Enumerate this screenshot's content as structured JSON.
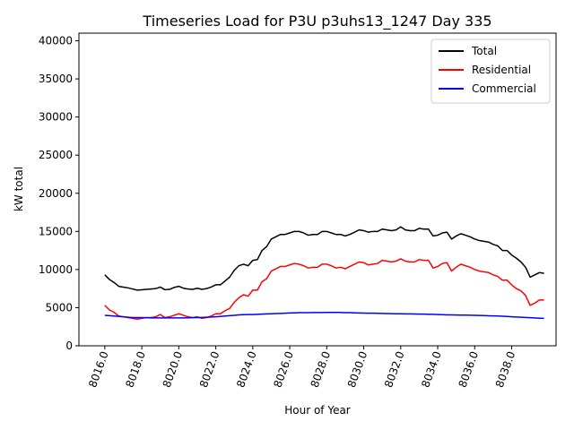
{
  "chart_data": {
    "type": "line",
    "title": "Timeseries Load for P3U p3uhs13_1247  Day 335",
    "xlabel": "Hour of Year",
    "ylabel": "kW total",
    "xlim": [
      8014.6,
      8040.4
    ],
    "ylim": [
      0,
      41000
    ],
    "xticks": [
      8016,
      8018,
      8020,
      8022,
      8024,
      8026,
      8028,
      8030,
      8032,
      8034,
      8036,
      8038
    ],
    "xtick_labels": [
      "8016.0",
      "8018.0",
      "8020.0",
      "8022.0",
      "8024.0",
      "8026.0",
      "8028.0",
      "8030.0",
      "8032.0",
      "8034.0",
      "8036.0",
      "8038.0"
    ],
    "yticks": [
      0,
      5000,
      10000,
      15000,
      20000,
      25000,
      30000,
      35000,
      40000
    ],
    "ytick_labels": [
      "0",
      "5000",
      "10000",
      "15000",
      "20000",
      "25000",
      "30000",
      "35000",
      "40000"
    ],
    "legend_position": "top-right",
    "x": [
      8016.0,
      8016.25,
      8016.5,
      8016.75,
      8017.0,
      8017.25,
      8017.5,
      8017.75,
      8018.0,
      8018.25,
      8018.5,
      8018.75,
      8019.0,
      8019.25,
      8019.5,
      8019.75,
      8020.0,
      8020.25,
      8020.5,
      8020.75,
      8021.0,
      8021.25,
      8021.5,
      8021.75,
      8022.0,
      8022.25,
      8022.5,
      8022.75,
      8023.0,
      8023.25,
      8023.5,
      8023.75,
      8024.0,
      8024.25,
      8024.5,
      8024.75,
      8025.0,
      8025.25,
      8025.5,
      8025.75,
      8026.0,
      8026.25,
      8026.5,
      8026.75,
      8027.0,
      8027.25,
      8027.5,
      8027.75,
      8028.0,
      8028.25,
      8028.5,
      8028.75,
      8029.0,
      8029.25,
      8029.5,
      8029.75,
      8030.0,
      8030.25,
      8030.5,
      8030.75,
      8031.0,
      8031.25,
      8031.5,
      8031.75,
      8032.0,
      8032.25,
      8032.5,
      8032.75,
      8033.0,
      8033.25,
      8033.5,
      8033.75,
      8034.0,
      8034.25,
      8034.5,
      8034.75,
      8035.0,
      8035.25,
      8035.5,
      8035.75,
      8036.0,
      8036.25,
      8036.5,
      8036.75,
      8037.0,
      8037.25,
      8037.5,
      8037.75,
      8038.0,
      8038.25,
      8038.5,
      8038.75,
      8039.0,
      8039.25,
      8039.5,
      8039.75
    ],
    "series": [
      {
        "name": "Total",
        "color": "#000000",
        "values": [
          9300,
          8700,
          8300,
          7800,
          7700,
          7600,
          7450,
          7300,
          7350,
          7400,
          7450,
          7500,
          7700,
          7350,
          7400,
          7650,
          7800,
          7550,
          7450,
          7400,
          7550,
          7400,
          7500,
          7700,
          8000,
          8000,
          8500,
          9000,
          9900,
          10500,
          10700,
          10500,
          11200,
          11300,
          12500,
          13000,
          14000,
          14300,
          14600,
          14600,
          14800,
          15000,
          15000,
          14800,
          14500,
          14600,
          14600,
          15000,
          15000,
          14800,
          14600,
          14600,
          14400,
          14600,
          14900,
          15200,
          15100,
          14900,
          15000,
          15000,
          15300,
          15200,
          15100,
          15200,
          15600,
          15200,
          15100,
          15100,
          15400,
          15300,
          15300,
          14400,
          14500,
          14800,
          14900,
          14000,
          14400,
          14700,
          14500,
          14300,
          14000,
          13800,
          13700,
          13600,
          13300,
          13100,
          12500,
          12500,
          11900,
          11500,
          11000,
          10300,
          9000,
          9300,
          9600,
          9500
        ]
      },
      {
        "name": "Residential",
        "color": "#ff0000",
        "values": [
          5300,
          4700,
          4400,
          3900,
          3800,
          3700,
          3600,
          3500,
          3600,
          3700,
          3700,
          3800,
          4100,
          3700,
          3800,
          4000,
          4200,
          4000,
          3800,
          3700,
          3800,
          3600,
          3700,
          3900,
          4200,
          4200,
          4600,
          4900,
          5700,
          6300,
          6700,
          6500,
          7300,
          7300,
          8400,
          8800,
          9800,
          10100,
          10400,
          10400,
          10600,
          10800,
          10700,
          10500,
          10200,
          10300,
          10300,
          10700,
          10700,
          10500,
          10200,
          10300,
          10100,
          10400,
          10700,
          11000,
          10900,
          10600,
          10700,
          10800,
          11200,
          11100,
          11000,
          11100,
          11400,
          11100,
          11000,
          11000,
          11300,
          11200,
          11200,
          10200,
          10400,
          10800,
          10900,
          9800,
          10300,
          10700,
          10500,
          10300,
          10000,
          9800,
          9700,
          9600,
          9300,
          9100,
          8600,
          8600,
          8000,
          7500,
          7200,
          6600,
          5300,
          5600,
          6000,
          6000
        ]
      },
      {
        "name": "Commercial",
        "color": "#0000ff",
        "values": [
          4000,
          3950,
          3900,
          3850,
          3800,
          3750,
          3700,
          3700,
          3700,
          3680,
          3660,
          3650,
          3650,
          3650,
          3650,
          3650,
          3650,
          3660,
          3670,
          3680,
          3700,
          3720,
          3750,
          3780,
          3800,
          3850,
          3900,
          3950,
          4000,
          4050,
          4080,
          4100,
          4100,
          4120,
          4150,
          4180,
          4200,
          4230,
          4250,
          4280,
          4300,
          4320,
          4340,
          4350,
          4350,
          4360,
          4360,
          4360,
          4370,
          4370,
          4370,
          4370,
          4350,
          4340,
          4320,
          4300,
          4290,
          4280,
          4270,
          4260,
          4250,
          4230,
          4220,
          4200,
          4200,
          4190,
          4180,
          4170,
          4160,
          4150,
          4130,
          4120,
          4100,
          4080,
          4060,
          4050,
          4040,
          4030,
          4020,
          4010,
          4000,
          3980,
          3960,
          3940,
          3920,
          3900,
          3870,
          3840,
          3800,
          3770,
          3740,
          3710,
          3680,
          3650,
          3620,
          3600
        ]
      }
    ]
  }
}
